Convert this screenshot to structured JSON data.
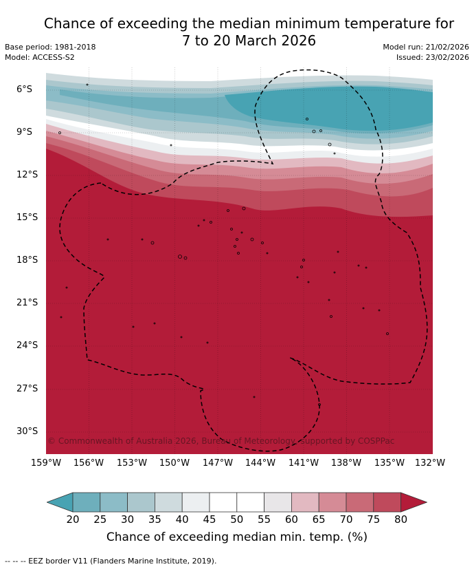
{
  "title_line1": "Chance of exceeding the median minimum temperature for",
  "title_line2": "7 to 20 March 2026",
  "base_period": "Base period: 1981-2018",
  "model": "Model: ACCESS-S2",
  "model_run": "Model run: 21/02/2026",
  "issued": "Issued: 23/02/2026",
  "copyright": "© Commonwealth of Australia 2026, Bureau of Meteorology, supported by COSPPac",
  "lat_labels": [
    "6°S",
    "9°S",
    "12°S",
    "15°S",
    "18°S",
    "21°S",
    "24°S",
    "27°S",
    "30°S"
  ],
  "lon_labels": [
    "159°W",
    "156°W",
    "153°W",
    "150°W",
    "147°W",
    "144°W",
    "141°W",
    "138°W",
    "135°W",
    "132°W"
  ],
  "colorbar": {
    "ticks": [
      "20",
      "25",
      "30",
      "35",
      "40",
      "45",
      "50",
      "55",
      "60",
      "65",
      "70",
      "75",
      "80"
    ],
    "label": "Chance of exceeding median min. temp. (%)",
    "colors": [
      "#48a3b3",
      "#6eafbc",
      "#8cbcc7",
      "#abc7cd",
      "#cfdbde",
      "#eceff1",
      "#ffffff",
      "#ffffff",
      "#e8e6e8",
      "#e2b9c1",
      "#d58b96",
      "#c96a77",
      "#bf4a5c",
      "#b31c39"
    ]
  },
  "footnote": "--  --  -- EEZ border V11 (Flanders Marine Institute, 2019).",
  "icons": {
    "legend_line": "dashed-line-icon"
  }
}
